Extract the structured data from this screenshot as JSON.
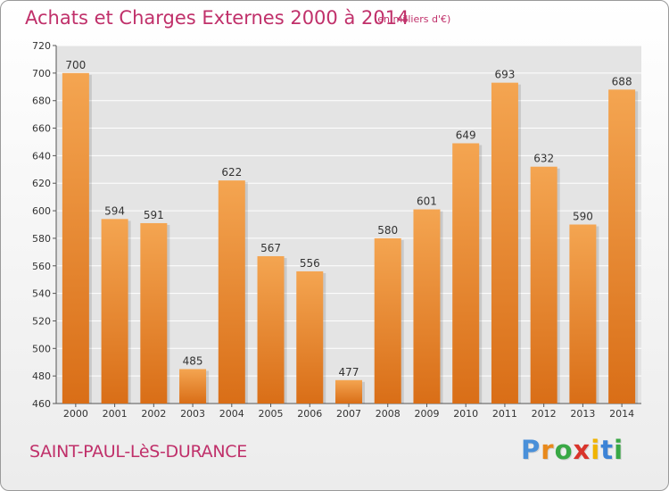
{
  "header": {
    "title": "Achats et Charges Externes 2000 à 2014",
    "units": "(en milliers d'€)"
  },
  "footer": {
    "city": "SAINT-PAUL-LèS-DURANCE",
    "logo": [
      "P",
      "r",
      "o",
      "x",
      "i",
      "t",
      "i"
    ],
    "logo_colors": [
      "#4a90d9",
      "#e8891c",
      "#39a845",
      "#d9342b",
      "#f0b400",
      "#3c83d6",
      "#39a845"
    ]
  },
  "colors": {
    "bar_light": "#f4a551",
    "bar_dark": "#d96e17",
    "grid": "#ffffff",
    "plot_bg": "#e4e4e4",
    "text": "#333333"
  },
  "chart_data": {
    "type": "bar",
    "categories": [
      "2000",
      "2001",
      "2002",
      "2003",
      "2004",
      "2005",
      "2006",
      "2007",
      "2008",
      "2009",
      "2010",
      "2011",
      "2012",
      "2013",
      "2014"
    ],
    "values": [
      700,
      594,
      591,
      485,
      622,
      567,
      556,
      477,
      580,
      601,
      649,
      693,
      632,
      590,
      688
    ],
    "title": "Achats et Charges Externes 2000 à 2014",
    "xlabel": "",
    "ylabel": "",
    "ylim": [
      460,
      720
    ],
    "yticks": [
      460,
      480,
      500,
      520,
      540,
      560,
      580,
      600,
      620,
      640,
      660,
      680,
      700,
      720
    ],
    "grid": true,
    "data_labels": true
  }
}
